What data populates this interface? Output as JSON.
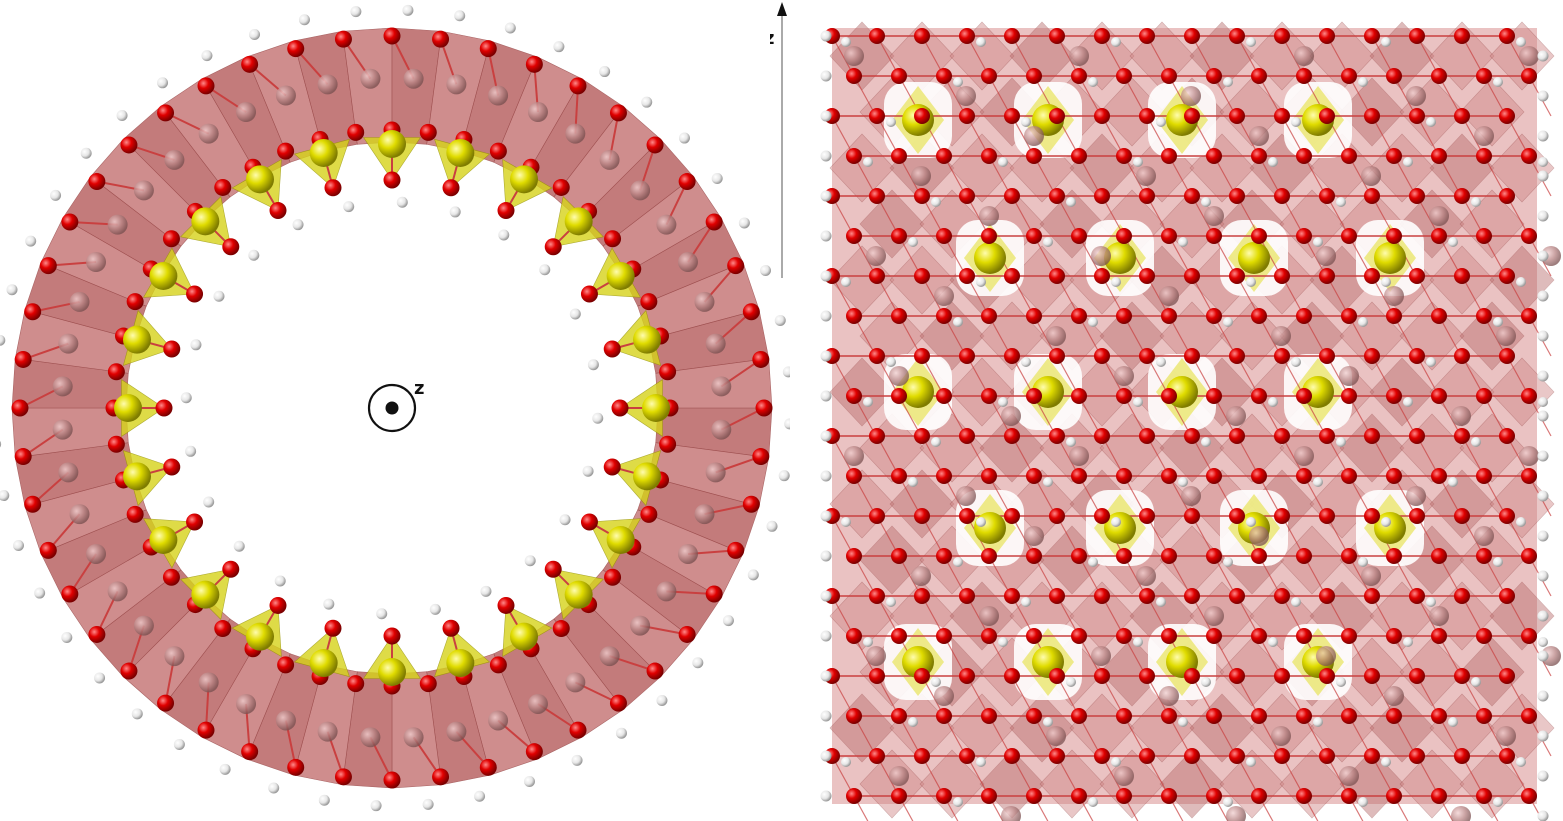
{
  "left_view": {
    "axis_symbol": "z"
  },
  "right_view": {
    "axis_label": "z"
  },
  "colors": {
    "background": "#ffffff",
    "polyhedra_alumina": "#c9706f",
    "polyhedra_silica": "#d9d61a",
    "oxygen": "#e10000",
    "hydrogen": "#f2f2f2",
    "aluminium": "#b98585",
    "silicon": "#e8e400"
  }
}
